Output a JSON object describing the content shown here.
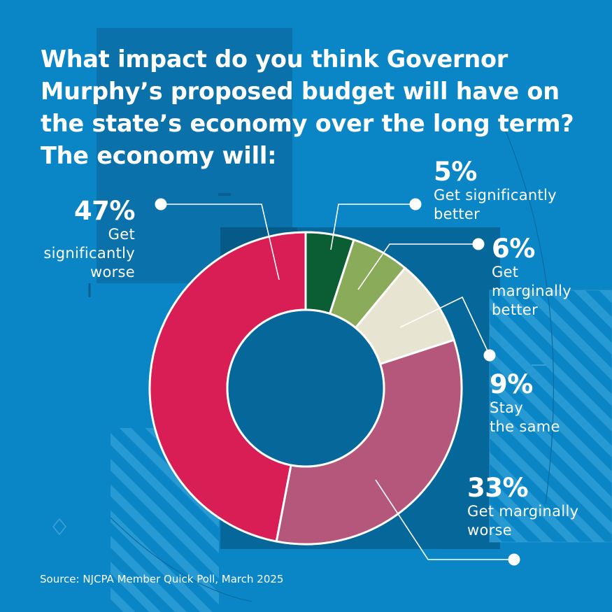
{
  "title_lines": [
    "What impact do you think Governor",
    "Murphy’s proposed budget will have on",
    "the state’s economy over the long term?",
    "The economy will:"
  ],
  "source": "Source: NJCPA Member Quick Poll, March 2025",
  "chart_data": {
    "type": "pie",
    "variant": "donut",
    "title": "What impact do you think Governor Murphy’s proposed budget will have on the state’s economy over the long term? The economy will:",
    "slices": [
      {
        "label": "Get significantly better",
        "pct_text": "5%",
        "value": 5,
        "color": "#0b5e34",
        "desc_lines": [
          "Get significantly",
          "better"
        ]
      },
      {
        "label": "Get marginally better",
        "pct_text": "6%",
        "value": 6,
        "color": "#8aab5a",
        "desc_lines": [
          "Get",
          "marginally",
          "better"
        ]
      },
      {
        "label": "Stay the same",
        "pct_text": "9%",
        "value": 9,
        "color": "#e8e4d2",
        "desc_lines": [
          "Stay",
          "the same"
        ]
      },
      {
        "label": "Get marginally worse",
        "pct_text": "33%",
        "value": 33,
        "color": "#b5577a",
        "desc_lines": [
          "Get marginally",
          "worse"
        ]
      },
      {
        "label": "Get significantly worse",
        "pct_text": "47%",
        "value": 47,
        "color": "#d91e55",
        "desc_lines": [
          "Get",
          "significantly",
          "worse"
        ]
      }
    ]
  }
}
